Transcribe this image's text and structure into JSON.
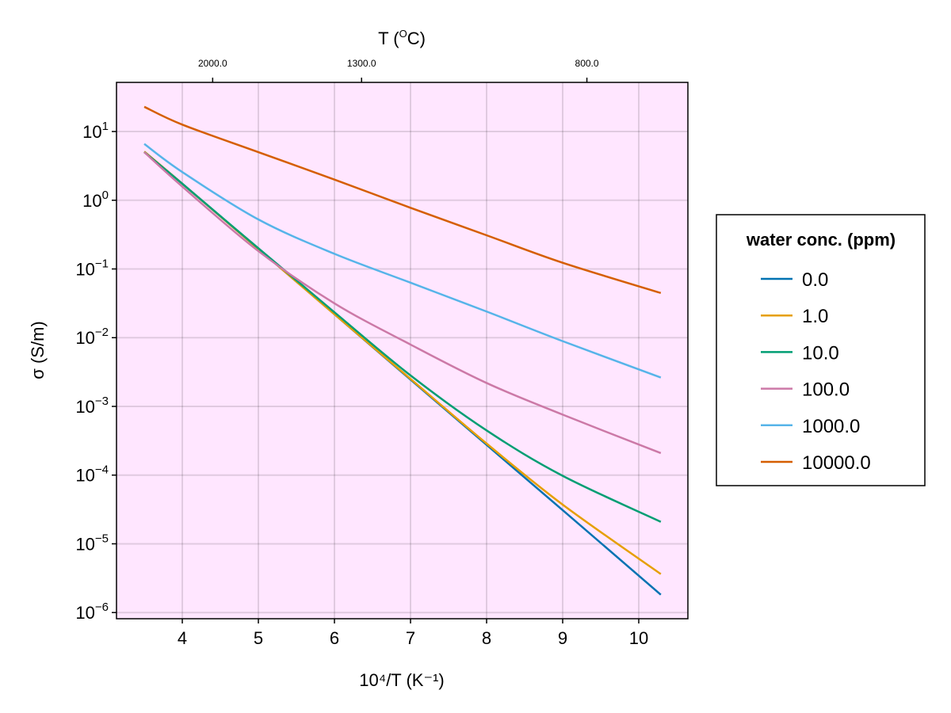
{
  "chart_data": {
    "type": "line",
    "xlabel": "10⁴/T (K⁻¹)",
    "ylabel": "σ (S/m)",
    "top_axis_label_main": "T (",
    "top_axis_label_sup": "O",
    "top_axis_label_end": "C)",
    "xlim": [
      3.135,
      10.646
    ],
    "ylim_log10": [
      -6.09,
      1.715
    ],
    "yscale": "log10",
    "grid": true,
    "background": "#FFE6FF",
    "x_ticks": [
      4,
      5,
      6,
      7,
      8,
      9,
      10
    ],
    "x_tick_labels": [
      "4",
      "5",
      "6",
      "7",
      "8",
      "9",
      "10"
    ],
    "y_ticks": [
      {
        "base": "10",
        "exp": "1",
        "value": 10
      },
      {
        "base": "10",
        "exp": "0",
        "value": 1
      },
      {
        "base": "10",
        "exp": "−1",
        "value": 0.1
      },
      {
        "base": "10",
        "exp": "−2",
        "value": 0.01
      },
      {
        "base": "10",
        "exp": "−3",
        "value": 0.001
      },
      {
        "base": "10",
        "exp": "−4",
        "value": 0.0001
      },
      {
        "base": "10",
        "exp": "−5",
        "value": 1e-05
      },
      {
        "base": "10",
        "exp": "−6",
        "value": 1e-06
      }
    ],
    "top_ticks": [
      {
        "label": "2000.0",
        "celsius": 2000
      },
      {
        "label": "1300.0",
        "celsius": 1300
      },
      {
        "label": "800.0",
        "celsius": 800
      }
    ],
    "legend": {
      "title": "water conc. (ppm)",
      "position": "right"
    },
    "x": [
      3.5,
      4,
      5,
      6,
      7,
      8,
      9,
      10.29
    ],
    "series": [
      {
        "name": "0.0",
        "color": "#0072B2",
        "values": [
          5.1,
          1.74,
          0.195,
          0.0219,
          0.00245,
          0.000275,
          3.09e-05,
          1.82e-06
        ]
      },
      {
        "name": "1.0",
        "color": "#E69F00",
        "values": [
          5.1,
          1.74,
          0.195,
          0.0219,
          0.00251,
          0.000288,
          3.72e-05,
          3.63e-06
        ]
      },
      {
        "name": "10.0",
        "color": "#009E73",
        "values": [
          5.0,
          1.74,
          0.2,
          0.0234,
          0.00282,
          0.000447,
          9.77e-05,
          2.09e-05
        ]
      },
      {
        "name": "100.0",
        "color": "#CC79A7",
        "values": [
          5.0,
          1.58,
          0.182,
          0.0316,
          0.00794,
          0.00219,
          0.000759,
          0.000209
        ]
      },
      {
        "name": "1000.0",
        "color": "#56B4E9",
        "values": [
          6.6,
          2.57,
          0.525,
          0.166,
          0.0631,
          0.024,
          0.0089,
          0.00263
        ]
      },
      {
        "name": "10000.0",
        "color": "#D55E00",
        "values": [
          22.9,
          12.6,
          5.01,
          2.0,
          0.776,
          0.309,
          0.123,
          0.0447
        ]
      }
    ]
  }
}
